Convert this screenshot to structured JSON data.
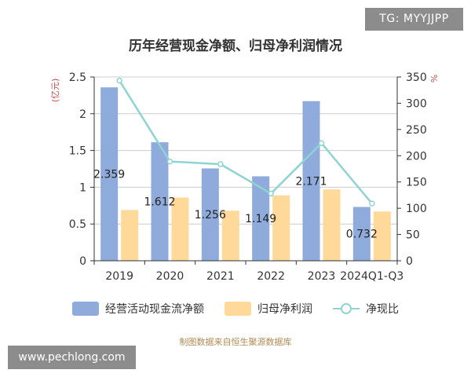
{
  "watermark_top": "TG: MYYJJPP",
  "watermark_bottom": "www.pechlong.com",
  "source": "制图数据来自恒生聚源数据库",
  "colors": {
    "bar1": "#8fabdc",
    "bar2": "#ffd99a",
    "line": "#8fd3d3",
    "axis_unit": "#c0504d"
  },
  "chart_data": {
    "type": "bar",
    "title": "历年经营现金净额、归母净利润情况",
    "categories": [
      "2019",
      "2020",
      "2021",
      "2022",
      "2023",
      "2024Q1-Q3"
    ],
    "y_left": {
      "unit": "亿元",
      "min": 0,
      "max": 2.5,
      "ticks": [
        0,
        0.5,
        1,
        1.5,
        2,
        2.5
      ],
      "tick_labels": [
        "0",
        "0.5",
        "1",
        "1.5",
        "2",
        "2.5"
      ]
    },
    "y_right": {
      "unit": "%",
      "min": 0,
      "max": 350,
      "ticks": [
        0,
        50,
        100,
        150,
        200,
        250,
        300,
        350
      ],
      "tick_labels": [
        "0",
        "50",
        "100",
        "150",
        "200",
        "250",
        "300",
        "350"
      ]
    },
    "grid": true,
    "legend_position": "bottom",
    "series": [
      {
        "name": "经营活动现金流净额",
        "type": "bar",
        "axis": "left",
        "values": [
          2.359,
          1.612,
          1.256,
          1.149,
          2.171,
          0.732
        ],
        "data_labels": [
          "2.359",
          "1.612",
          "1.256",
          "1.149",
          "2.171",
          "0.732"
        ]
      },
      {
        "name": "归母净利润",
        "type": "bar",
        "axis": "left",
        "values": [
          0.69,
          0.86,
          0.68,
          0.89,
          0.97,
          0.67
        ]
      },
      {
        "name": "净现比",
        "type": "line",
        "axis": "right",
        "values": [
          343,
          189,
          184,
          128,
          224,
          109
        ]
      }
    ]
  }
}
